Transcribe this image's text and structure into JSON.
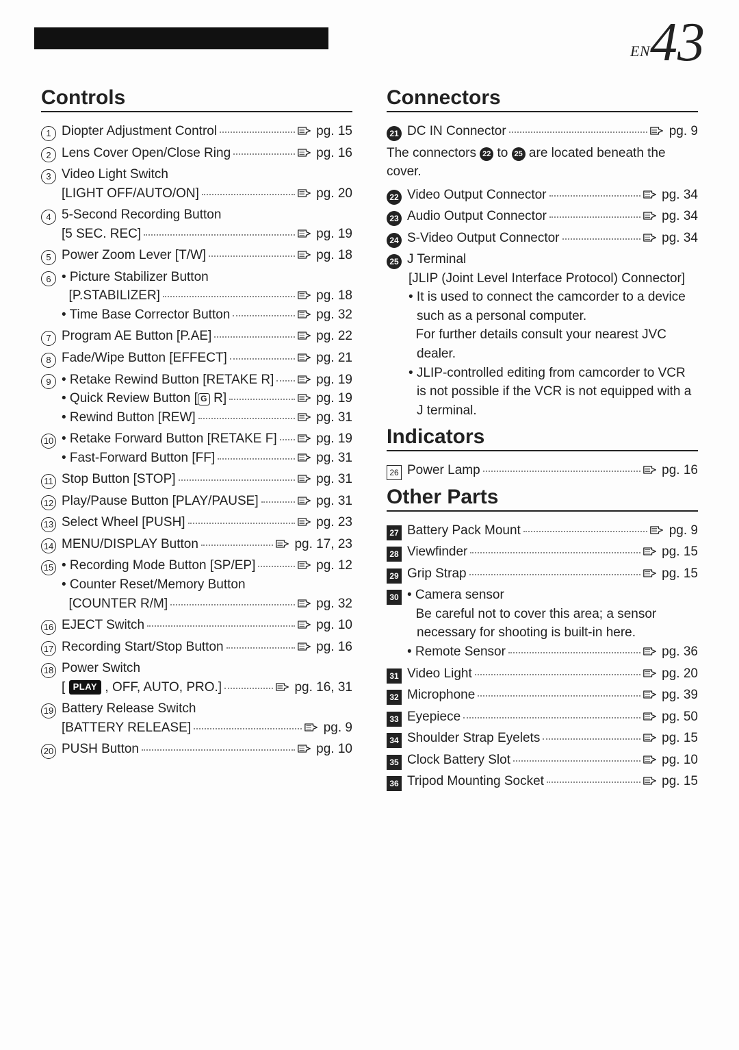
{
  "page": {
    "lang_prefix": "EN",
    "number": "43"
  },
  "ref_prefix": "pg.",
  "sections": {
    "controls": "Controls",
    "connectors": "Connectors",
    "indicators": "Indicators",
    "other": "Other Parts"
  },
  "controls": [
    {
      "n": "1",
      "style": "circ",
      "lines": [
        {
          "label": "Diopter Adjustment Control",
          "pg": "15"
        }
      ]
    },
    {
      "n": "2",
      "style": "circ",
      "lines": [
        {
          "label": "Lens Cover Open/Close Ring",
          "pg": "16"
        }
      ]
    },
    {
      "n": "3",
      "style": "circ",
      "lines": [
        {
          "label": "Video Light Switch"
        },
        {
          "label": "[LIGHT OFF/AUTO/ON]",
          "pg": "20"
        }
      ]
    },
    {
      "n": "4",
      "style": "circ",
      "lines": [
        {
          "label": "5-Second Recording Button"
        },
        {
          "label": "[5 SEC. REC]",
          "pg": "19"
        }
      ]
    },
    {
      "n": "5",
      "style": "circ",
      "lines": [
        {
          "label": "Power Zoom Lever [T/W]",
          "pg": "18"
        }
      ]
    },
    {
      "n": "6",
      "style": "circ",
      "lines": [
        {
          "label": "• Picture Stabilizer Button"
        },
        {
          "label": "  [P.STABILIZER]",
          "pg": "18"
        },
        {
          "label": "• Time Base Corrector Button",
          "pg": "32"
        }
      ]
    },
    {
      "n": "7",
      "style": "circ",
      "lines": [
        {
          "label": "Program AE Button [P.AE]",
          "pg": "22"
        }
      ]
    },
    {
      "n": "8",
      "style": "circ",
      "lines": [
        {
          "label": "Fade/Wipe Button [EFFECT]",
          "pg": "21"
        }
      ]
    },
    {
      "n": "9",
      "style": "circ",
      "lines": [
        {
          "label": "• Retake Rewind Button [RETAKE R]",
          "pg": "19"
        },
        {
          "label_html": "• Quick Review Button [<span class='g-badge'>G</span> R]",
          "pg": "19"
        },
        {
          "label": "• Rewind Button [REW]",
          "pg": "31"
        }
      ]
    },
    {
      "n": "10",
      "style": "circ",
      "lines": [
        {
          "label": "• Retake Forward Button [RETAKE F]",
          "pg": "19"
        },
        {
          "label": "• Fast-Forward Button [FF]",
          "pg": "31"
        }
      ]
    },
    {
      "n": "11",
      "style": "circ",
      "lines": [
        {
          "label": "Stop Button [STOP]",
          "pg": "31"
        }
      ]
    },
    {
      "n": "12",
      "style": "circ",
      "lines": [
        {
          "label": "Play/Pause Button [PLAY/PAUSE]",
          "pg": "31"
        }
      ]
    },
    {
      "n": "13",
      "style": "circ",
      "lines": [
        {
          "label": "Select Wheel [PUSH]",
          "pg": "23"
        }
      ]
    },
    {
      "n": "14",
      "style": "circ",
      "lines": [
        {
          "label": "MENU/DISPLAY Button",
          "pg": "17, 23"
        }
      ]
    },
    {
      "n": "15",
      "style": "circ",
      "lines": [
        {
          "label": "• Recording Mode Button [SP/EP]",
          "pg": "12"
        },
        {
          "label": "• Counter Reset/Memory Button"
        },
        {
          "label": "  [COUNTER R/M]",
          "pg": "32"
        }
      ]
    },
    {
      "n": "16",
      "style": "circ",
      "lines": [
        {
          "label": "EJECT Switch",
          "pg": "10"
        }
      ]
    },
    {
      "n": "17",
      "style": "circ",
      "lines": [
        {
          "label": "Recording Start/Stop Button",
          "pg": "16"
        }
      ]
    },
    {
      "n": "18",
      "style": "circ",
      "lines": [
        {
          "label": "Power Switch"
        },
        {
          "label_html": "[ <span class='play-badge'>PLAY</span> , OFF, AUTO, PRO.]",
          "pg": "16, 31"
        }
      ]
    },
    {
      "n": "19",
      "style": "circ",
      "lines": [
        {
          "label": "Battery Release Switch"
        },
        {
          "label": "[BATTERY RELEASE]",
          "pg": "9"
        }
      ]
    },
    {
      "n": "20",
      "style": "circ",
      "lines": [
        {
          "label": "PUSH Button",
          "pg": "10"
        }
      ]
    }
  ],
  "connectors": [
    {
      "n": "21",
      "style": "solid",
      "lines": [
        {
          "label": "DC IN Connector",
          "pg": "9"
        }
      ]
    }
  ],
  "connectors_note_html": "The connectors <span class='inline-marker-solid'>22</span> to <span class='inline-marker-solid'>25</span> are located beneath the cover.",
  "connectors2": [
    {
      "n": "22",
      "style": "solid",
      "lines": [
        {
          "label": "Video Output Connector",
          "pg": "34"
        }
      ]
    },
    {
      "n": "23",
      "style": "solid",
      "lines": [
        {
          "label": "Audio Output Connector",
          "pg": "34"
        }
      ]
    },
    {
      "n": "24",
      "style": "solid",
      "lines": [
        {
          "label": "S-Video Output Connector",
          "pg": "34"
        }
      ]
    },
    {
      "n": "25",
      "style": "solid",
      "lines": [
        {
          "label": "J Terminal"
        }
      ],
      "extras": [
        "[JLIP (Joint Level Interface Protocol) Connector]",
        "• It is used to connect the camcorder to a device such as a personal computer.",
        "  For further details consult your nearest JVC dealer.",
        "• JLIP-controlled editing from camcorder to VCR is not possible if the VCR is not equipped with a J terminal."
      ]
    }
  ],
  "indicators": [
    {
      "n": "26",
      "style": "box",
      "lines": [
        {
          "label": "Power Lamp",
          "pg": "16"
        }
      ]
    }
  ],
  "other": [
    {
      "n": "27",
      "style": "boxsolid",
      "lines": [
        {
          "label": "Battery Pack Mount",
          "pg": "9"
        }
      ]
    },
    {
      "n": "28",
      "style": "boxsolid",
      "lines": [
        {
          "label": "Viewfinder",
          "pg": "15"
        }
      ]
    },
    {
      "n": "29",
      "style": "boxsolid",
      "lines": [
        {
          "label": "Grip Strap",
          "pg": "15"
        }
      ]
    },
    {
      "n": "30",
      "style": "boxsolid",
      "lines": [
        {
          "label": "• Camera sensor"
        }
      ],
      "extras": [
        "  Be careful not to cover this area; a sensor necessary for shooting is built-in here."
      ],
      "after_lines": [
        {
          "label": "• Remote Sensor",
          "pg": "36"
        }
      ]
    },
    {
      "n": "31",
      "style": "boxsolid",
      "lines": [
        {
          "label": "Video Light",
          "pg": "20"
        }
      ]
    },
    {
      "n": "32",
      "style": "boxsolid",
      "lines": [
        {
          "label": "Microphone",
          "pg": "39"
        }
      ]
    },
    {
      "n": "33",
      "style": "boxsolid",
      "lines": [
        {
          "label": "Eyepiece",
          "pg": "50"
        }
      ]
    },
    {
      "n": "34",
      "style": "boxsolid",
      "lines": [
        {
          "label": "Shoulder Strap Eyelets",
          "pg": "15"
        }
      ]
    },
    {
      "n": "35",
      "style": "boxsolid",
      "lines": [
        {
          "label": "Clock Battery Slot",
          "pg": "10"
        }
      ]
    },
    {
      "n": "36",
      "style": "boxsolid",
      "lines": [
        {
          "label": "Tripod Mounting Socket",
          "pg": "15"
        }
      ]
    }
  ],
  "colors": {
    "text": "#222222",
    "bg": "#fdfdfd",
    "dots": "#888888"
  }
}
